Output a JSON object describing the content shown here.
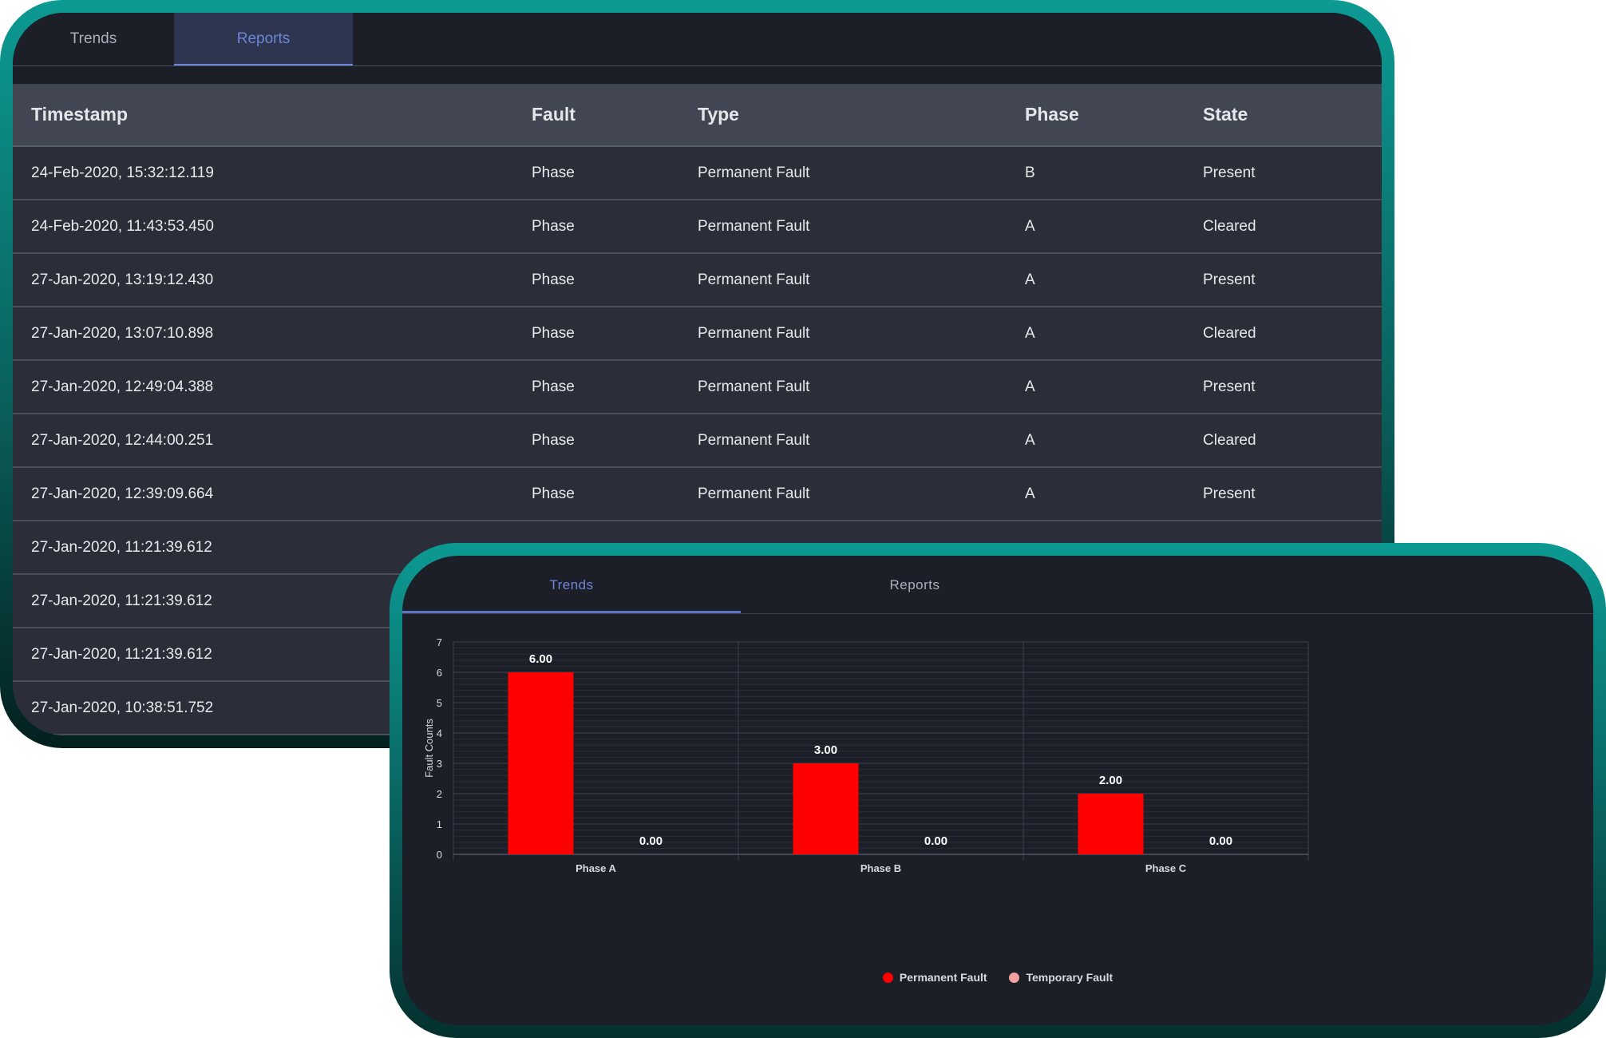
{
  "reports_panel": {
    "tabs": [
      {
        "label": "Trends",
        "active": false
      },
      {
        "label": "Reports",
        "active": true
      }
    ],
    "columns": [
      "Timestamp",
      "Fault",
      "Type",
      "Phase",
      "State"
    ],
    "rows": [
      {
        "timestamp": "24-Feb-2020, 15:32:12.119",
        "fault": "Phase",
        "type": "Permanent Fault",
        "phase": "B",
        "state": "Present"
      },
      {
        "timestamp": "24-Feb-2020, 11:43:53.450",
        "fault": "Phase",
        "type": "Permanent Fault",
        "phase": "A",
        "state": "Cleared"
      },
      {
        "timestamp": "27-Jan-2020, 13:19:12.430",
        "fault": "Phase",
        "type": "Permanent Fault",
        "phase": "A",
        "state": "Present"
      },
      {
        "timestamp": "27-Jan-2020, 13:07:10.898",
        "fault": "Phase",
        "type": "Permanent Fault",
        "phase": "A",
        "state": "Cleared"
      },
      {
        "timestamp": "27-Jan-2020, 12:49:04.388",
        "fault": "Phase",
        "type": "Permanent Fault",
        "phase": "A",
        "state": "Present"
      },
      {
        "timestamp": "27-Jan-2020, 12:44:00.251",
        "fault": "Phase",
        "type": "Permanent Fault",
        "phase": "A",
        "state": "Cleared"
      },
      {
        "timestamp": "27-Jan-2020, 12:39:09.664",
        "fault": "Phase",
        "type": "Permanent Fault",
        "phase": "A",
        "state": "Present"
      },
      {
        "timestamp": "27-Jan-2020, 11:21:39.612",
        "fault": "",
        "type": "",
        "phase": "",
        "state": ""
      },
      {
        "timestamp": "27-Jan-2020, 11:21:39.612",
        "fault": "",
        "type": "",
        "phase": "",
        "state": ""
      },
      {
        "timestamp": "27-Jan-2020, 11:21:39.612",
        "fault": "",
        "type": "",
        "phase": "",
        "state": ""
      },
      {
        "timestamp": "27-Jan-2020, 10:38:51.752",
        "fault": "",
        "type": "",
        "phase": "",
        "state": ""
      }
    ]
  },
  "trends_panel": {
    "tabs": [
      {
        "label": "Trends",
        "active": true
      },
      {
        "label": "Reports",
        "active": false
      }
    ]
  },
  "colors": {
    "accent": "#0c9a93",
    "permanent": "#ff0000",
    "temporary": "#f4a0a0",
    "active_tab": "#6e86d6"
  },
  "chart_data": {
    "type": "bar",
    "categories": [
      "Phase A",
      "Phase B",
      "Phase C"
    ],
    "series": [
      {
        "name": "Permanent Fault",
        "values": [
          6,
          3,
          2
        ],
        "labels": [
          "6.00",
          "3.00",
          "2.00"
        ],
        "color": "#ff0000"
      },
      {
        "name": "Temporary Fault",
        "values": [
          0,
          0,
          0
        ],
        "labels": [
          "0.00",
          "0.00",
          "0.00"
        ],
        "color": "#f4a0a0"
      }
    ],
    "ylabel": "Fault Counts",
    "xlabel": "",
    "title": "",
    "ylim": [
      0,
      7
    ],
    "yticks": [
      "0",
      "1",
      "2",
      "3",
      "4",
      "5",
      "6",
      "7"
    ],
    "grid": true,
    "legend": "bottom-center"
  }
}
